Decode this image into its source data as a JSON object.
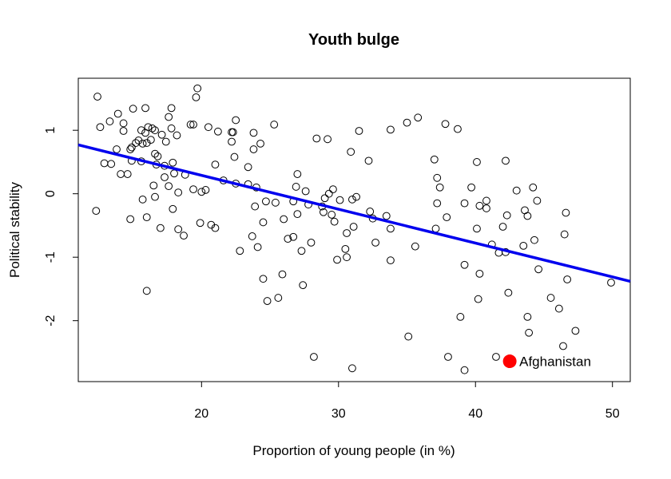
{
  "chart_data": {
    "type": "scatter",
    "title": "Youth bulge",
    "xlabel": "Proportion of young people (in %)",
    "ylabel": "Political stability",
    "xlim": [
      11,
      51.3
    ],
    "ylim": [
      -2.96,
      1.82
    ],
    "x_ticks": [
      20,
      30,
      40,
      50
    ],
    "y_ticks": [
      -2,
      -1,
      0,
      1
    ],
    "x_tick_labels": [
      "20",
      "30",
      "40",
      "50"
    ],
    "y_tick_labels": [
      "-2",
      "-1",
      "0",
      "1"
    ],
    "grid": false,
    "legend": "none",
    "point_color": "#000000",
    "regression_line": {
      "color": "#0000ee",
      "x": [
        11,
        51.3
      ],
      "y": [
        0.77,
        -1.38
      ]
    },
    "highlight": {
      "label": "Afghanistan",
      "x": 42.5,
      "y": -2.64,
      "color": "#ff0000"
    },
    "points": [
      [
        12.4,
        1.53
      ],
      [
        12.6,
        1.05
      ],
      [
        13.3,
        1.14
      ],
      [
        13.9,
        1.26
      ],
      [
        14.3,
        1.11
      ],
      [
        14.3,
        0.99
      ],
      [
        15.0,
        1.34
      ],
      [
        15.9,
        1.35
      ],
      [
        15.6,
        1.0
      ],
      [
        15.9,
        0.96
      ],
      [
        16.1,
        1.05
      ],
      [
        16.4,
        1.03
      ],
      [
        17.6,
        1.21
      ],
      [
        17.8,
        1.35
      ],
      [
        17.8,
        1.03
      ],
      [
        18.2,
        0.92
      ],
      [
        17.1,
        0.93
      ],
      [
        19.2,
        1.09
      ],
      [
        19.4,
        1.09
      ],
      [
        19.6,
        1.52
      ],
      [
        19.7,
        1.66
      ],
      [
        20.5,
        1.05
      ],
      [
        21.2,
        0.98
      ],
      [
        22.2,
        0.97
      ],
      [
        22.3,
        0.97
      ],
      [
        22.5,
        1.16
      ],
      [
        23.8,
        0.96
      ],
      [
        25.3,
        1.09
      ],
      [
        12.9,
        0.48
      ],
      [
        13.4,
        0.47
      ],
      [
        13.8,
        0.7
      ],
      [
        14.1,
        0.31
      ],
      [
        14.6,
        0.31
      ],
      [
        14.9,
        0.52
      ],
      [
        14.9,
        0.73
      ],
      [
        14.8,
        0.7
      ],
      [
        15.2,
        0.8
      ],
      [
        15.4,
        0.84
      ],
      [
        15.6,
        0.51
      ],
      [
        15.7,
        0.79
      ],
      [
        16.0,
        0.8
      ],
      [
        16.3,
        0.85
      ],
      [
        16.6,
        1.0
      ],
      [
        16.8,
        0.59
      ],
      [
        16.7,
        0.46
      ],
      [
        16.6,
        0.63
      ],
      [
        17.3,
        0.44
      ],
      [
        17.3,
        0.26
      ],
      [
        17.4,
        0.82
      ],
      [
        17.9,
        0.49
      ],
      [
        18.0,
        0.32
      ],
      [
        18.8,
        0.3
      ],
      [
        16.5,
        0.13
      ],
      [
        16.6,
        -0.05
      ],
      [
        17.6,
        0.12
      ],
      [
        18.3,
        0.02
      ],
      [
        19.4,
        0.07
      ],
      [
        20.0,
        0.03
      ],
      [
        20.3,
        0.06
      ],
      [
        21.0,
        0.46
      ],
      [
        21.6,
        0.21
      ],
      [
        22.2,
        0.82
      ],
      [
        22.4,
        0.58
      ],
      [
        22.5,
        0.16
      ],
      [
        23.4,
        0.42
      ],
      [
        23.4,
        0.15
      ],
      [
        23.8,
        0.7
      ],
      [
        24.3,
        0.79
      ],
      [
        24.0,
        0.1
      ],
      [
        12.3,
        -0.27
      ],
      [
        14.8,
        -0.4
      ],
      [
        15.7,
        -0.09
      ],
      [
        16.0,
        -0.37
      ],
      [
        17.0,
        -0.54
      ],
      [
        17.9,
        -0.24
      ],
      [
        18.3,
        -0.56
      ],
      [
        18.7,
        -0.66
      ],
      [
        19.9,
        -0.46
      ],
      [
        20.7,
        -0.49
      ],
      [
        21.0,
        -0.54
      ],
      [
        22.8,
        -0.9
      ],
      [
        23.7,
        -0.67
      ],
      [
        23.9,
        -0.2
      ],
      [
        24.1,
        -0.84
      ],
      [
        24.5,
        -0.45
      ],
      [
        24.7,
        -0.12
      ],
      [
        25.4,
        -0.14
      ],
      [
        26.0,
        -0.4
      ],
      [
        26.3,
        -0.71
      ],
      [
        26.7,
        -0.68
      ],
      [
        27.0,
        -0.32
      ],
      [
        27.3,
        -0.9
      ],
      [
        27.8,
        -0.17
      ],
      [
        28.0,
        -0.77
      ],
      [
        26.7,
        -0.12
      ],
      [
        27.6,
        0.04
      ],
      [
        27.0,
        0.31
      ],
      [
        26.9,
        0.11
      ],
      [
        28.4,
        0.87
      ],
      [
        29.2,
        0.86
      ],
      [
        29.0,
        -0.07
      ],
      [
        29.3,
        0.0
      ],
      [
        29.6,
        0.07
      ],
      [
        28.8,
        -0.2
      ],
      [
        29.5,
        -0.33
      ],
      [
        30.1,
        -0.1
      ],
      [
        28.9,
        -0.29
      ],
      [
        29.7,
        -0.44
      ],
      [
        29.9,
        -1.04
      ],
      [
        30.5,
        -0.87
      ],
      [
        30.6,
        -1.0
      ],
      [
        30.6,
        -0.62
      ],
      [
        30.9,
        0.66
      ],
      [
        31.0,
        -0.09
      ],
      [
        31.3,
        -0.05
      ],
      [
        31.1,
        -0.52
      ],
      [
        31.5,
        0.99
      ],
      [
        32.2,
        0.52
      ],
      [
        32.5,
        -0.39
      ],
      [
        32.3,
        -0.28
      ],
      [
        32.7,
        -0.77
      ],
      [
        33.5,
        -0.35
      ],
      [
        33.8,
        1.01
      ],
      [
        33.8,
        -0.55
      ],
      [
        33.8,
        -1.05
      ],
      [
        35.0,
        1.12
      ],
      [
        35.8,
        1.2
      ],
      [
        35.6,
        -0.83
      ],
      [
        37.0,
        0.54
      ],
      [
        37.2,
        -0.15
      ],
      [
        37.2,
        0.25
      ],
      [
        37.4,
        0.1
      ],
      [
        37.1,
        -0.55
      ],
      [
        37.9,
        -0.37
      ],
      [
        37.8,
        1.1
      ],
      [
        38.7,
        1.02
      ],
      [
        39.2,
        -0.15
      ],
      [
        39.2,
        -1.12
      ],
      [
        39.7,
        0.1
      ],
      [
        40.1,
        0.5
      ],
      [
        40.1,
        -0.55
      ],
      [
        40.3,
        -0.19
      ],
      [
        40.8,
        -0.11
      ],
      [
        40.8,
        -0.23
      ],
      [
        40.3,
        -1.26
      ],
      [
        40.2,
        -1.66
      ],
      [
        41.2,
        -0.8
      ],
      [
        41.7,
        -0.93
      ],
      [
        42.2,
        0.52
      ],
      [
        42.3,
        -0.34
      ],
      [
        42.0,
        -0.52
      ],
      [
        42.2,
        -0.92
      ],
      [
        42.4,
        -1.56
      ],
      [
        43.0,
        0.05
      ],
      [
        43.6,
        -0.26
      ],
      [
        43.5,
        -0.82
      ],
      [
        43.8,
        -0.35
      ],
      [
        44.2,
        0.1
      ],
      [
        44.5,
        -0.11
      ],
      [
        44.3,
        -0.73
      ],
      [
        44.6,
        -1.19
      ],
      [
        43.8,
        -1.94
      ],
      [
        43.9,
        -2.19
      ],
      [
        45.5,
        -1.64
      ],
      [
        46.1,
        -1.81
      ],
      [
        46.6,
        -0.3
      ],
      [
        46.5,
        -0.64
      ],
      [
        46.7,
        -1.35
      ],
      [
        46.4,
        -2.4
      ],
      [
        47.3,
        -2.16
      ],
      [
        49.9,
        -1.4
      ],
      [
        24.5,
        -1.34
      ],
      [
        24.8,
        -1.69
      ],
      [
        25.6,
        -1.64
      ],
      [
        25.9,
        -1.27
      ],
      [
        27.4,
        -1.44
      ],
      [
        28.2,
        -2.57
      ],
      [
        31.0,
        -2.75
      ],
      [
        35.1,
        -2.25
      ],
      [
        38.0,
        -2.57
      ],
      [
        38.9,
        -1.94
      ],
      [
        39.2,
        -2.78
      ],
      [
        41.5,
        -2.57
      ],
      [
        16.0,
        -1.53
      ]
    ]
  }
}
